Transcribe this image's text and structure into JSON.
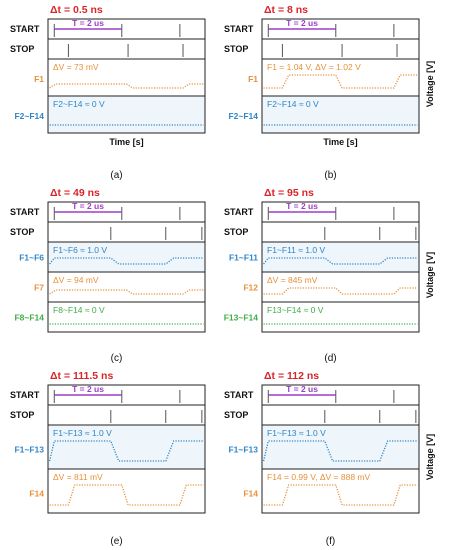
{
  "panels": [
    {
      "id": "a",
      "dt": "Δt = 0.5 ns",
      "period": "T = 2 us",
      "start_label": "START",
      "stop_label": "STOP",
      "rows": [
        {
          "label": "F1",
          "note": "ΔV = 73 mV",
          "color": "#e8913a",
          "wave": "small"
        },
        {
          "label": "F2~F14",
          "note": "F2~F14 ≈ 0 V",
          "color": "#2f86c8",
          "wave": "flat"
        }
      ],
      "xlabel": "Time [s]",
      "ylabel": "",
      "caption": "(a)"
    },
    {
      "id": "b",
      "dt": "Δt = 8 ns",
      "period": "T = 2 us",
      "start_label": "START",
      "stop_label": "STOP",
      "rows": [
        {
          "label": "F1",
          "note": "F1 = 1.04 V, ΔV = 1.02 V",
          "color": "#e8913a",
          "wave": "big"
        },
        {
          "label": "F2~F14",
          "note": "F2~F14 ≈ 0 V",
          "color": "#2f86c8",
          "wave": "flat"
        }
      ],
      "xlabel": "Time [s]",
      "ylabel": "Voltage [V]",
      "caption": "(b)"
    },
    {
      "id": "c",
      "dt": "Δt = 49 ns",
      "period": "T = 2 us",
      "start_label": "START",
      "stop_label": "STOP",
      "rows": [
        {
          "label": "F1~F6",
          "note": "F1~F6 ≈ 1.0 V",
          "color": "#2f86c8",
          "wave": "dip"
        },
        {
          "label": "F7",
          "note": "ΔV = 94 mV",
          "color": "#e8913a",
          "wave": "small"
        },
        {
          "label": "F8~F14",
          "note": "F8~F14 ≈ 0 V",
          "color": "#3fae4a",
          "wave": "flat"
        }
      ],
      "xlabel": "",
      "ylabel": "",
      "caption": "(c)"
    },
    {
      "id": "d",
      "dt": "Δt = 95 ns",
      "period": "T = 2 us",
      "start_label": "START",
      "stop_label": "STOP",
      "rows": [
        {
          "label": "F1~F11",
          "note": "F1~F11 ≈ 1.0 V",
          "color": "#2f86c8",
          "wave": "dip"
        },
        {
          "label": "F12",
          "note": "ΔV = 845 mV",
          "color": "#e8913a",
          "wave": "big"
        },
        {
          "label": "F13~F14",
          "note": "F13~F14 ≈ 0 V",
          "color": "#3fae4a",
          "wave": "flat"
        }
      ],
      "xlabel": "",
      "ylabel": "Voltage [V]",
      "caption": "(d)"
    },
    {
      "id": "e",
      "dt": "Δt = 111.5 ns",
      "period": "T = 2 us",
      "start_label": "START",
      "stop_label": "STOP",
      "rows": [
        {
          "label": "F1~F13",
          "note": "F1~F13 ≈ 1.0 V",
          "color": "#2f86c8",
          "wave": "dip"
        },
        {
          "label": "F14",
          "note": "ΔV = 811 mV",
          "color": "#e8913a",
          "wave": "big"
        }
      ],
      "xlabel": "",
      "ylabel": "",
      "caption": "(e)"
    },
    {
      "id": "f",
      "dt": "Δt = 112 ns",
      "period": "T = 2 us",
      "start_label": "START",
      "stop_label": "STOP",
      "rows": [
        {
          "label": "F1~F13",
          "note": "F1~F13 ≈ 1.0 V",
          "color": "#2f86c8",
          "wave": "dip"
        },
        {
          "label": "F14",
          "note": "F14 = 0.99 V, ΔV = 888 mV",
          "color": "#e8913a",
          "wave": "big"
        }
      ],
      "xlabel": "",
      "ylabel": "Voltage [V]",
      "caption": "(f)"
    }
  ],
  "colors": {
    "dt_text": "#d9262b",
    "period": "#9b3fc8",
    "frame": "#222222",
    "tick": "#555555",
    "band_blue": "#eef5fb"
  }
}
